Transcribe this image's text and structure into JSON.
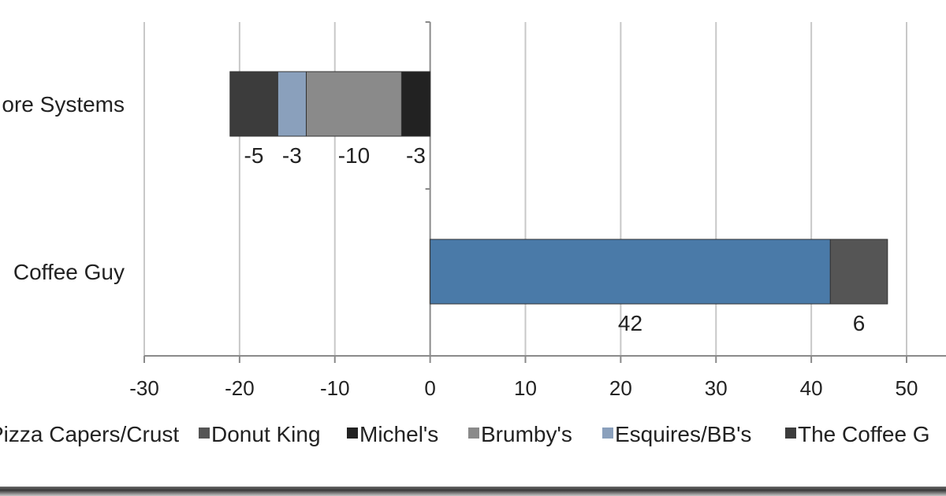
{
  "chart_data": {
    "type": "bar",
    "orientation": "horizontal",
    "stacked": true,
    "categories": [
      "ore Systems",
      "Coffee Guy"
    ],
    "series": [
      {
        "name": "Pizza Capers/Crust",
        "color": "#4a7aa8",
        "values": [
          null,
          42
        ]
      },
      {
        "name": "Donut King",
        "color": "#555555",
        "values": [
          null,
          6
        ]
      },
      {
        "name": "Michel's",
        "color": "#222222",
        "values": [
          -3,
          null
        ]
      },
      {
        "name": "Brumby's",
        "color": "#8a8a8a",
        "values": [
          -10,
          null
        ]
      },
      {
        "name": "Esquires/BB's",
        "color": "#8aa0bc",
        "values": [
          -3,
          null
        ]
      },
      {
        "name": "The Coffee G",
        "color": "#3c3c3c",
        "values": [
          -5,
          null
        ]
      }
    ],
    "xlim": [
      -30,
      55
    ],
    "xticks": [
      -30,
      -20,
      -10,
      0,
      10,
      20,
      30,
      40,
      50
    ],
    "grid": "vertical",
    "legend": "bottom",
    "title": "",
    "xlabel": "",
    "ylabel": ""
  }
}
